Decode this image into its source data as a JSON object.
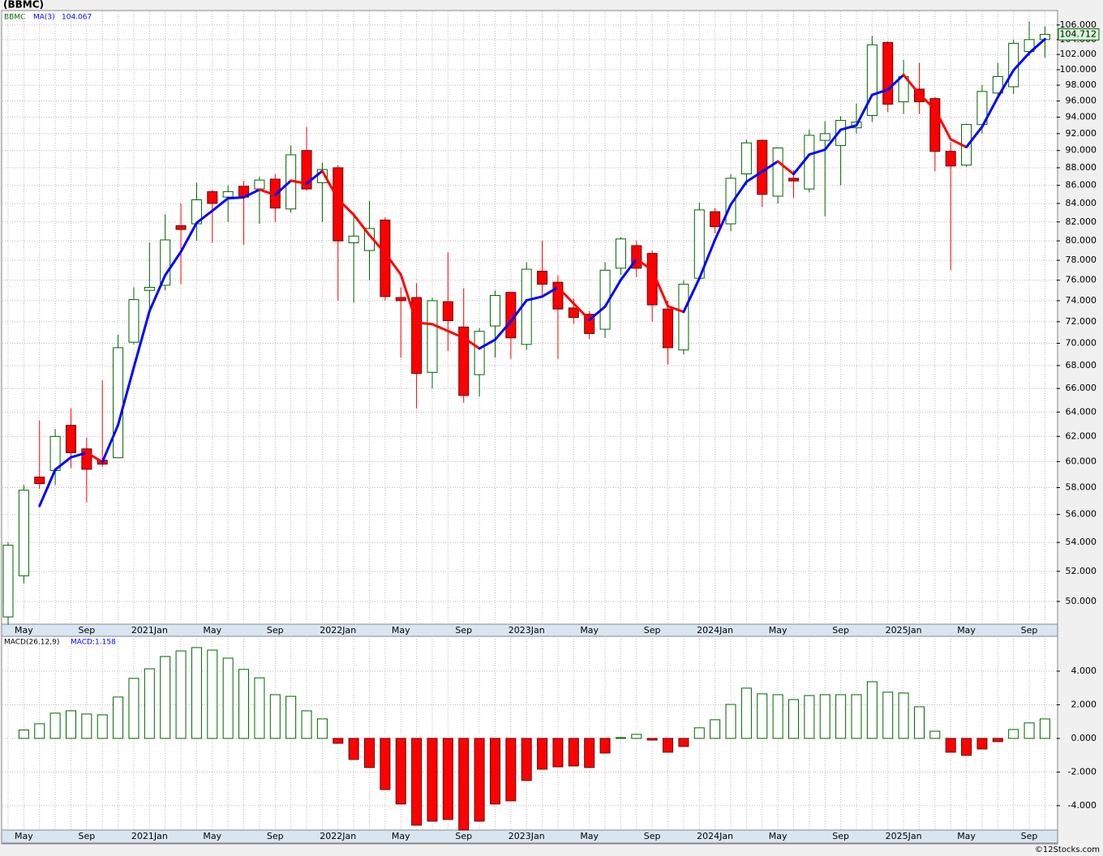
{
  "title": "(BBMC)",
  "footer": "©12Stocks.com",
  "chart_data": [
    {
      "type": "candlestick",
      "categories": [
        null,
        "May",
        null,
        null,
        null,
        "Sep",
        null,
        null,
        null,
        "2021Jan",
        null,
        null,
        null,
        "May",
        null,
        null,
        null,
        "Sep",
        null,
        null,
        null,
        "2022Jan",
        null,
        null,
        null,
        "May",
        null,
        null,
        null,
        "Sep",
        null,
        null,
        null,
        "2023Jan",
        null,
        null,
        null,
        "May",
        null,
        null,
        null,
        "Sep",
        null,
        null,
        null,
        "2024Jan",
        null,
        null,
        null,
        "May",
        null,
        null,
        null,
        "Sep",
        null,
        null,
        null,
        "2025Jan",
        null,
        null,
        null,
        "May",
        null,
        null,
        null,
        "Sep",
        null
      ],
      "series": [
        {
          "name": "BBMC",
          "color": "#006400",
          "down_color": "#ff0000",
          "open": [
            49,
            51.7,
            58.8,
            59.3,
            62.9,
            61,
            60.1,
            60.3,
            70.1,
            75,
            75.5,
            81.6,
            81.8,
            85.3,
            84.7,
            85.9,
            85.6,
            86.7,
            83.4,
            90,
            86.3,
            88,
            79.8,
            79,
            82.2,
            74.3,
            74.3,
            67.4,
            73.9,
            71.5,
            67.2,
            71.6,
            74.8,
            69.9,
            76.9,
            75.8,
            73.3,
            72.7,
            71.3,
            77.2,
            79.5,
            78.7,
            73.2,
            69.4,
            76.2,
            83.1,
            81.8,
            87.3,
            91.2,
            84.8,
            86.8,
            85.6,
            91.2,
            90.6,
            92.7,
            94.2,
            103.6,
            95.9,
            97.5,
            96.3,
            89.9,
            88.3,
            93.1,
            97,
            97.8,
            102.4,
            104
          ],
          "high": [
            54,
            58.2,
            63.3,
            62.6,
            64.3,
            61.9,
            66.7,
            70.8,
            75.3,
            79.8,
            82.8,
            84,
            86.3,
            85.5,
            86,
            86.5,
            87,
            87.3,
            90.6,
            92.8,
            88.6,
            88.3,
            83,
            84.3,
            82.5,
            75.3,
            75.7,
            74.3,
            78.8,
            75.2,
            71.4,
            75,
            74.8,
            77.8,
            80,
            76.5,
            74.2,
            73,
            77.8,
            80.4,
            80,
            79,
            74,
            76,
            84.1,
            83.5,
            87.3,
            91.3,
            91.3,
            90.3,
            87.7,
            92.5,
            93.5,
            94.1,
            95.7,
            104.5,
            103.8,
            101.3,
            100.9,
            96.5,
            91,
            93.2,
            98,
            100.9,
            104,
            106.5,
            105.8
          ],
          "low": [
            48.5,
            51.2,
            57.9,
            58.2,
            59.5,
            56.9,
            59.6,
            60.3,
            69.9,
            73,
            75,
            75.6,
            80,
            79.8,
            82,
            79.6,
            81.8,
            82,
            83,
            85.4,
            82,
            74,
            73.8,
            76,
            74,
            68.7,
            64.3,
            66,
            69.3,
            64.8,
            65.3,
            68.7,
            68.6,
            69.4,
            74.4,
            68.6,
            71.8,
            70.4,
            70.5,
            76.5,
            76.3,
            72,
            68.1,
            69,
            76,
            80.8,
            81,
            86,
            83.6,
            84,
            84.6,
            85.2,
            82.6,
            86,
            92,
            93.4,
            94.6,
            94.4,
            94.4,
            87.6,
            77,
            88.1,
            92,
            96.6,
            96.9,
            101.8,
            101.6
          ],
          "close": [
            53.8,
            57.8,
            58.3,
            62,
            60.7,
            59.4,
            59.8,
            69.6,
            74.1,
            75.3,
            80.1,
            81.2,
            84.4,
            84,
            85.3,
            84.7,
            86.6,
            83.5,
            89.5,
            85.6,
            87.8,
            80,
            80.5,
            81.3,
            74.4,
            74,
            67.3,
            74,
            72.1,
            65.4,
            71.1,
            74.5,
            70.5,
            77.1,
            75.6,
            73.2,
            72.4,
            70.9,
            77,
            80.2,
            77.2,
            73.6,
            69.6,
            75.6,
            83.3,
            81.5,
            86.8,
            90.9,
            85,
            90.3,
            86.5,
            91.8,
            92,
            93.6,
            93.4,
            103.3,
            95.6,
            99.1,
            95.9,
            89.9,
            88.2,
            93.1,
            97.2,
            99.1,
            103.5,
            104,
            104.712
          ]
        },
        {
          "name": "MA(3)",
          "color": "#0000ff",
          "down_color": "#ff0000",
          "values": [
            null,
            null,
            56.63,
            59.37,
            60.33,
            60.7,
            59.97,
            62.93,
            67.83,
            73.0,
            76.5,
            78.87,
            81.9,
            83.2,
            84.57,
            84.67,
            85.53,
            84.93,
            86.53,
            86.2,
            87.63,
            84.47,
            82.77,
            80.6,
            78.73,
            76.57,
            71.9,
            71.77,
            71.13,
            70.5,
            69.53,
            70.33,
            72.03,
            74.03,
            74.4,
            75.3,
            73.73,
            72.17,
            73.43,
            76.03,
            78.13,
            77.0,
            73.47,
            72.93,
            76.17,
            80.13,
            83.87,
            86.4,
            87.57,
            88.73,
            87.27,
            89.53,
            90.1,
            92.47,
            93.0,
            96.77,
            97.43,
            99.33,
            96.87,
            94.97,
            91.33,
            90.4,
            92.83,
            96.47,
            99.93,
            102.2,
            104.067
          ]
        }
      ],
      "log_scale": true,
      "ylim": [
        48.54,
        107.9
      ],
      "yticks": [
        {
          "value": 50,
          "label": "50.000"
        },
        {
          "value": 52,
          "label": "52.000"
        },
        {
          "value": 54,
          "label": "54.000"
        },
        {
          "value": 56,
          "label": "56.000"
        },
        {
          "value": 58,
          "label": "58.000"
        },
        {
          "value": 60,
          "label": "60.000"
        },
        {
          "value": 62,
          "label": "62.000"
        },
        {
          "value": 64,
          "label": "64.000"
        },
        {
          "value": 66,
          "label": "66.000"
        },
        {
          "value": 68,
          "label": "68.000"
        },
        {
          "value": 70,
          "label": "70.000"
        },
        {
          "value": 72,
          "label": "72.000"
        },
        {
          "value": 74,
          "label": "74.000"
        },
        {
          "value": 76,
          "label": "76.000"
        },
        {
          "value": 78,
          "label": "78.000"
        },
        {
          "value": 80,
          "label": "80.000"
        },
        {
          "value": 82,
          "label": "82.000"
        },
        {
          "value": 84,
          "label": "84.000"
        },
        {
          "value": 86,
          "label": "86.000"
        },
        {
          "value": 88,
          "label": "88.000"
        },
        {
          "value": 90,
          "label": "90.000"
        },
        {
          "value": 92,
          "label": "92.000"
        },
        {
          "value": 94,
          "label": "94.000"
        },
        {
          "value": 96,
          "label": "96.000"
        },
        {
          "value": 98,
          "label": "98.000"
        },
        {
          "value": 100,
          "label": "100.000"
        },
        {
          "value": 102,
          "label": "102.000"
        },
        {
          "value": 104,
          "label": "104.000"
        },
        {
          "value": 106,
          "label": "106.000"
        }
      ],
      "grid": true
    },
    {
      "type": "bar",
      "legend_text": "MACD:1.158",
      "series": [
        {
          "name": "MACD(26,12,9)",
          "color": "#006400",
          "down_color": "#ff0000",
          "values": [
            null,
            0.5,
            0.87,
            1.5,
            1.64,
            1.45,
            1.4,
            2.46,
            3.57,
            4.14,
            4.87,
            5.2,
            5.4,
            5.25,
            4.77,
            4.1,
            3.6,
            2.6,
            2.5,
            1.64,
            1.16,
            -0.29,
            -1.25,
            -1.73,
            -3.04,
            -3.9,
            -5.16,
            -4.92,
            -4.82,
            -5.45,
            -4.92,
            -3.9,
            -3.71,
            -2.5,
            -1.83,
            -1.69,
            -1.64,
            -1.73,
            -0.87,
            0.05,
            0.24,
            -0.1,
            -0.82,
            -0.48,
            0.63,
            1.11,
            2.02,
            2.99,
            2.65,
            2.6,
            2.31,
            2.55,
            2.6,
            2.6,
            2.6,
            3.37,
            2.75,
            2.7,
            1.88,
            0.43,
            -0.82,
            -1.01,
            -0.63,
            -0.19,
            0.53,
            0.92,
            1.158
          ]
        }
      ],
      "ylim": [
        -5.45,
        6.07
      ],
      "yticks": [
        {
          "value": -4,
          "label": "-4.000"
        },
        {
          "value": -2,
          "label": "-2.000"
        },
        {
          "value": 0,
          "label": "0.000"
        },
        {
          "value": 2,
          "label": "2.000"
        },
        {
          "value": 4,
          "label": "4.000"
        }
      ],
      "grid": true
    }
  ]
}
